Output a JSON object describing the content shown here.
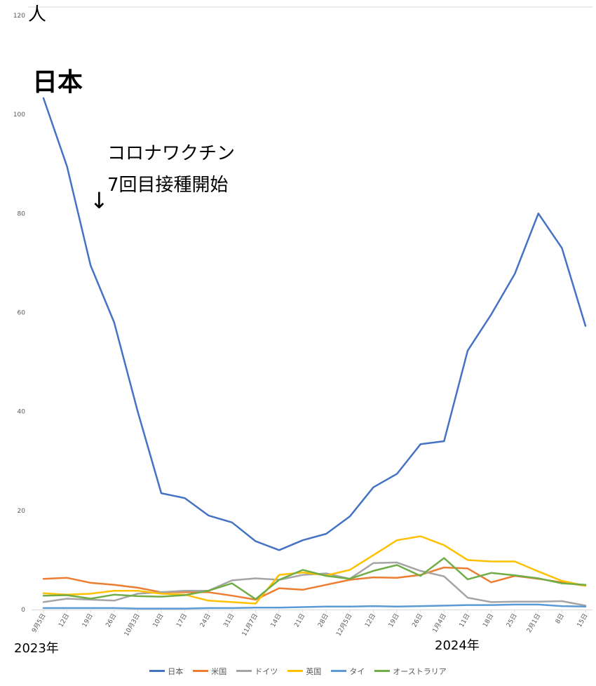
{
  "chart_data": {
    "type": "line",
    "unit_label": "人",
    "ylim": [
      0,
      120
    ],
    "yticks": [
      0,
      20,
      40,
      60,
      80,
      100,
      120
    ],
    "grid": false,
    "legend_position": "bottom",
    "categories": [
      "9月5日",
      "12日",
      "19日",
      "26日",
      "10月3日",
      "10日",
      "17日",
      "24日",
      "31日",
      "11月7日",
      "14日",
      "21日",
      "28日",
      "12月5日",
      "12日",
      "19日",
      "26日",
      "1月4日",
      "11日",
      "18日",
      "25日",
      "2月1日",
      "8日",
      "15日"
    ],
    "year_labels": [
      "2023年",
      "2024年"
    ],
    "series": [
      {
        "name": "日本",
        "color": "#4472C4",
        "values": [
          103.3,
          89.5,
          69.5,
          58.0,
          40.0,
          23.5,
          22.5,
          19.0,
          17.6,
          13.8,
          12.0,
          14.0,
          15.3,
          18.8,
          24.7,
          27.4,
          33.4,
          34.0,
          52.3,
          59.6,
          67.8,
          80.0,
          73.0,
          57.3
        ]
      },
      {
        "name": "米国",
        "color": "#ED7D31",
        "values": [
          6.2,
          6.4,
          5.4,
          5.0,
          4.4,
          3.5,
          3.5,
          3.5,
          2.8,
          2.0,
          4.3,
          4.0,
          5.0,
          6.0,
          6.5,
          6.4,
          7.0,
          8.5,
          8.3,
          5.5,
          6.8,
          6.2,
          5.5,
          4.8
        ]
      },
      {
        "name": "ドイツ",
        "color": "#A5A5A5",
        "values": [
          1.5,
          2.2,
          2.0,
          1.8,
          3.2,
          3.5,
          3.8,
          3.8,
          5.9,
          6.3,
          6.0,
          7.0,
          7.3,
          6.2,
          9.4,
          9.5,
          7.8,
          6.7,
          2.4,
          1.5,
          1.6,
          1.6,
          1.7,
          0.8
        ]
      },
      {
        "name": "英国",
        "color": "#FFC000",
        "values": [
          3.3,
          3.0,
          3.2,
          3.8,
          3.8,
          3.2,
          3.0,
          1.8,
          1.5,
          1.2,
          7.0,
          7.5,
          6.9,
          8.0,
          11.0,
          14.0,
          14.8,
          13.0,
          10.0,
          9.7,
          9.7,
          7.7,
          5.8,
          4.8
        ]
      },
      {
        "name": "タイ",
        "color": "#5B9BD5",
        "values": [
          0.3,
          0.3,
          0.3,
          0.3,
          0.2,
          0.2,
          0.2,
          0.3,
          0.3,
          0.4,
          0.4,
          0.5,
          0.6,
          0.6,
          0.7,
          0.6,
          0.7,
          0.8,
          0.9,
          0.9,
          1.0,
          1.0,
          0.7,
          0.6
        ]
      },
      {
        "name": "オーストラリア",
        "color": "#70AD47",
        "values": [
          2.8,
          2.9,
          2.2,
          3.0,
          2.7,
          2.6,
          2.9,
          3.8,
          5.3,
          2.1,
          6.0,
          8.0,
          6.8,
          6.2,
          7.8,
          9.0,
          6.8,
          10.4,
          6.1,
          7.4,
          6.9,
          6.3,
          5.3,
          5.0
        ]
      }
    ]
  },
  "annotations": {
    "series_label": "日本",
    "vaccine_line1": "コロナワクチン",
    "vaccine_line2": "7回目接種開始",
    "arrow": "↓"
  }
}
